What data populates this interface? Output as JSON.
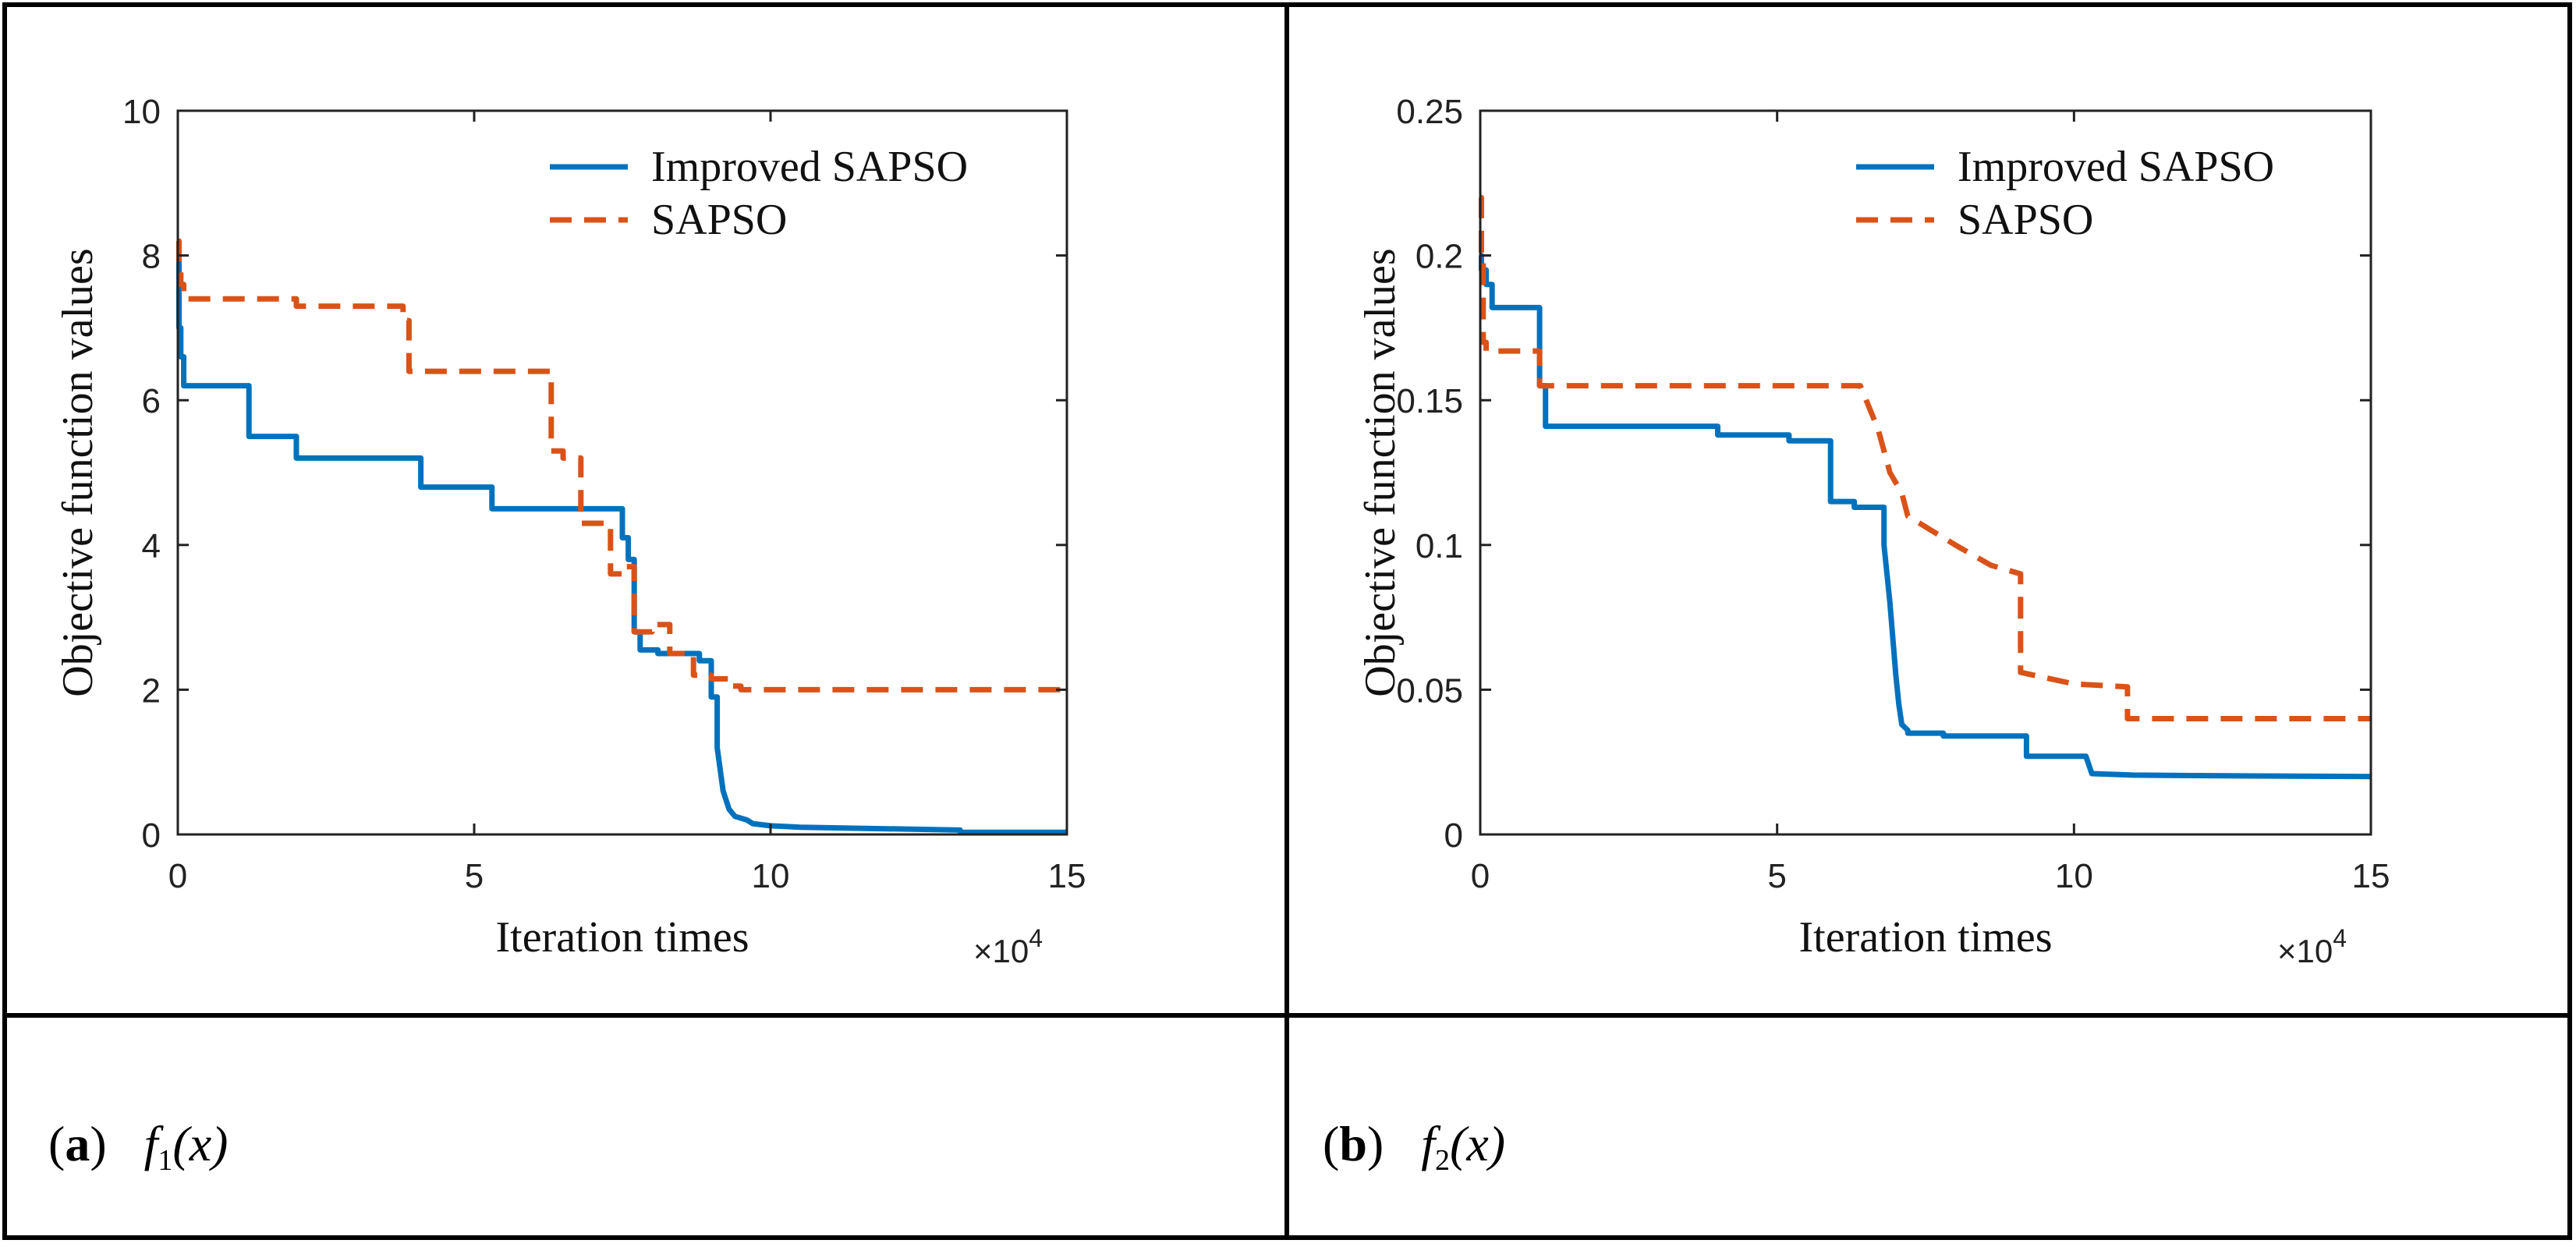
{
  "chart_data": [
    {
      "type": "line",
      "panel_label": "a",
      "func_name": "f",
      "func_index": "1",
      "func_arg": "(x)",
      "xlabel": "Iteration times",
      "ylabel": "Objective function values",
      "x_multiplier": "×10",
      "x_exponent": "4",
      "xlim": [
        0,
        15
      ],
      "ylim": [
        0,
        10
      ],
      "xticks": [
        0,
        5,
        10,
        15
      ],
      "yticks": [
        0,
        2,
        4,
        6,
        8,
        10
      ],
      "xtick_labels": [
        "0",
        "5",
        "10",
        "15"
      ],
      "ytick_labels": [
        "0",
        "2",
        "4",
        "6",
        "8",
        "10"
      ],
      "grid": false,
      "legend_position": "top-right",
      "series": [
        {
          "name": "Improved SAPSO",
          "color": "#0072BD",
          "style": "solid",
          "x": [
            0,
            0.02,
            0.02,
            0.05,
            0.05,
            0.1,
            0.1,
            1.2,
            1.2,
            2.0,
            2.0,
            4.1,
            4.1,
            5.3,
            5.3,
            7.5,
            7.5,
            7.6,
            7.6,
            7.7,
            7.7,
            7.8,
            7.8,
            8.1,
            8.1,
            8.8,
            8.8,
            9.0,
            9.0,
            9.1,
            9.1,
            9.2,
            9.3,
            9.4,
            9.6,
            9.7,
            10.0,
            10.5,
            13.2,
            13.2,
            15
          ],
          "y": [
            8.0,
            8.0,
            7.0,
            7.0,
            6.6,
            6.6,
            6.2,
            6.2,
            5.5,
            5.5,
            5.2,
            5.2,
            4.8,
            4.8,
            4.5,
            4.5,
            4.1,
            4.1,
            3.8,
            3.8,
            2.8,
            2.8,
            2.55,
            2.55,
            2.5,
            2.5,
            2.4,
            2.4,
            1.9,
            1.9,
            1.2,
            0.6,
            0.35,
            0.25,
            0.2,
            0.15,
            0.12,
            0.1,
            0.06,
            0.03,
            0.03
          ]
        },
        {
          "name": "SAPSO",
          "color": "#D95319",
          "style": "dashed",
          "x": [
            0,
            0.02,
            0.02,
            0.05,
            0.05,
            0.1,
            0.1,
            2.0,
            2.0,
            3.8,
            3.8,
            3.9,
            3.9,
            6.3,
            6.3,
            6.5,
            6.5,
            6.8,
            6.8,
            7.3,
            7.3,
            7.5,
            7.5,
            7.7,
            7.7,
            8.0,
            8.0,
            8.3,
            8.3,
            8.7,
            8.7,
            9.0,
            9.0,
            9.3,
            9.3,
            9.5,
            9.5,
            15
          ],
          "y": [
            8.2,
            8.2,
            7.8,
            7.8,
            7.6,
            7.6,
            7.4,
            7.4,
            7.3,
            7.3,
            7.1,
            7.1,
            6.4,
            6.4,
            5.3,
            5.3,
            5.2,
            5.2,
            4.3,
            4.3,
            3.6,
            3.6,
            3.7,
            3.7,
            2.8,
            2.8,
            2.9,
            2.9,
            2.5,
            2.5,
            2.2,
            2.2,
            2.15,
            2.15,
            2.05,
            2.05,
            2.0,
            2.0
          ]
        }
      ]
    },
    {
      "type": "line",
      "panel_label": "b",
      "func_name": "f",
      "func_index": "2",
      "func_arg": "(x)",
      "xlabel": "Iteration times",
      "ylabel": "Objective function values",
      "x_multiplier": "×10",
      "x_exponent": "4",
      "xlim": [
        0,
        15
      ],
      "ylim": [
        0,
        0.25
      ],
      "xticks": [
        0,
        5,
        10,
        15
      ],
      "yticks": [
        0,
        0.05,
        0.1,
        0.15,
        0.2,
        0.25
      ],
      "xtick_labels": [
        "0",
        "5",
        "10",
        "15"
      ],
      "ytick_labels": [
        "0",
        "0.05",
        "0.1",
        "0.15",
        "0.2",
        "0.25"
      ],
      "grid": false,
      "legend_position": "top-right",
      "series": [
        {
          "name": "Improved SAPSO",
          "color": "#0072BD",
          "style": "solid",
          "x": [
            0,
            0.02,
            0.02,
            0.1,
            0.1,
            0.2,
            0.2,
            1.0,
            1.0,
            1.1,
            1.1,
            4.0,
            4.0,
            5.2,
            5.2,
            5.9,
            5.9,
            6.3,
            6.3,
            6.8,
            6.8,
            6.9,
            7.0,
            7.05,
            7.1,
            7.2,
            7.2,
            7.8,
            7.8,
            9.2,
            9.2,
            10.2,
            10.3,
            11.0,
            13.0,
            15
          ],
          "y": [
            0.2,
            0.2,
            0.195,
            0.195,
            0.19,
            0.19,
            0.182,
            0.182,
            0.155,
            0.155,
            0.141,
            0.141,
            0.138,
            0.138,
            0.136,
            0.136,
            0.115,
            0.115,
            0.113,
            0.113,
            0.1,
            0.08,
            0.055,
            0.045,
            0.038,
            0.036,
            0.035,
            0.035,
            0.034,
            0.034,
            0.027,
            0.027,
            0.021,
            0.0205,
            0.0202,
            0.02
          ]
        },
        {
          "name": "SAPSO",
          "color": "#D95319",
          "style": "dashed",
          "x": [
            0,
            0.02,
            0.02,
            0.05,
            0.05,
            0.1,
            0.1,
            1.0,
            1.0,
            6.4,
            6.5,
            6.7,
            6.9,
            7.1,
            7.2,
            7.6,
            8.0,
            8.6,
            9.1,
            9.1,
            10.0,
            10.0,
            10.9,
            10.9,
            15
          ],
          "y": [
            0.22,
            0.22,
            0.2,
            0.2,
            0.17,
            0.17,
            0.167,
            0.167,
            0.155,
            0.155,
            0.15,
            0.14,
            0.125,
            0.118,
            0.11,
            0.105,
            0.1,
            0.093,
            0.09,
            0.056,
            0.052,
            0.052,
            0.051,
            0.04,
            0.04
          ]
        }
      ]
    }
  ]
}
